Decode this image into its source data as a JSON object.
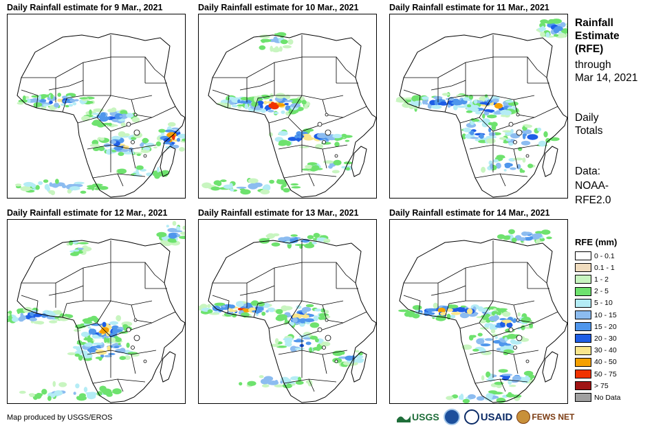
{
  "panels": [
    {
      "title": "Daily Rainfall estimate for 9 Mar., 2021"
    },
    {
      "title": "Daily Rainfall estimate for 10 Mar., 2021"
    },
    {
      "title": "Daily Rainfall estimate for 11 Mar., 2021"
    },
    {
      "title": "Daily Rainfall estimate for 12 Mar., 2021"
    },
    {
      "title": "Daily Rainfall estimate for 13 Mar., 2021"
    },
    {
      "title": "Daily Rainfall estimate for 14 Mar., 2021"
    }
  ],
  "sidebar": {
    "title_line1": "Rainfall",
    "title_line2": "Estimate",
    "title_line3": "(RFE)",
    "through": "through",
    "date": "Mar 14, 2021",
    "totals_line1": "Daily",
    "totals_line2": "Totals",
    "data_line1": "Data:",
    "data_line2": "NOAA-",
    "data_line3": "RFE2.0"
  },
  "legend": {
    "title": "RFE (mm)",
    "items": [
      {
        "label": "0 - 0.1",
        "color": "#ffffff"
      },
      {
        "label": "0.1 - 1",
        "color": "#f0dcbe"
      },
      {
        "label": "1 - 2",
        "color": "#c8f5c0"
      },
      {
        "label": "2 - 5",
        "color": "#6ee26e"
      },
      {
        "label": "5 - 10",
        "color": "#b4ecf5"
      },
      {
        "label": "10 - 15",
        "color": "#8cbcf0"
      },
      {
        "label": "15 - 20",
        "color": "#4f96ec"
      },
      {
        "label": "20 - 30",
        "color": "#1e5ee6"
      },
      {
        "label": "30 - 40",
        "color": "#fae68c"
      },
      {
        "label": "40 - 50",
        "color": "#f5a000"
      },
      {
        "label": "50 - 75",
        "color": "#f03200"
      },
      {
        "label": "> 75",
        "color": "#a01414"
      },
      {
        "label": "No Data",
        "color": "#a0a0a0"
      }
    ]
  },
  "footer": {
    "credit": "Map produced by USGS/EROS",
    "logos": [
      "USGS",
      "NOAA",
      "USAID",
      "FEWS NET"
    ]
  }
}
